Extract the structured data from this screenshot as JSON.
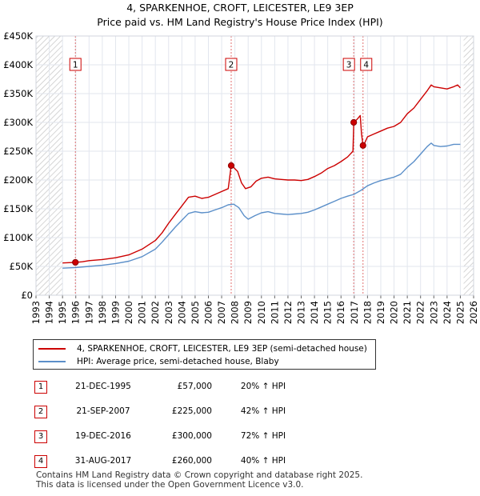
{
  "chart_data": {
    "type": "line",
    "title": "4, SPARKENHOE, CROFT, LEICESTER, LE9 3EP",
    "subtitle": "Price paid vs. HM Land Registry's House Price Index (HPI)",
    "xlim": [
      1993,
      2026
    ],
    "ylim": [
      0,
      450000
    ],
    "x_ticks": [
      "1993",
      "1994",
      "1995",
      "1996",
      "1997",
      "1998",
      "1999",
      "2000",
      "2001",
      "2002",
      "2003",
      "2004",
      "2005",
      "2006",
      "2007",
      "2008",
      "2009",
      "2010",
      "2011",
      "2012",
      "2013",
      "2014",
      "2015",
      "2016",
      "2017",
      "2018",
      "2019",
      "2020",
      "2021",
      "2022",
      "2023",
      "2024",
      "2025",
      "2026"
    ],
    "y_ticks": [
      {
        "value": 0,
        "label": "£0"
      },
      {
        "value": 50000,
        "label": "£50K"
      },
      {
        "value": 100000,
        "label": "£100K"
      },
      {
        "value": 150000,
        "label": "£150K"
      },
      {
        "value": 200000,
        "label": "£200K"
      },
      {
        "value": 250000,
        "label": "£250K"
      },
      {
        "value": 300000,
        "label": "£300K"
      },
      {
        "value": 350000,
        "label": "£350K"
      },
      {
        "value": 400000,
        "label": "£400K"
      },
      {
        "value": 450000,
        "label": "£450K"
      }
    ],
    "hatched_ranges": [
      [
        1993,
        1995
      ],
      [
        2025.25,
        2026
      ]
    ],
    "colors": {
      "property": "#cc0000",
      "hpi": "#5b8fc9",
      "marker_border": "#cc0000",
      "grid": "#e2e6ee",
      "plot_bg": "#ffffff"
    },
    "series": [
      {
        "name": "4, SPARKENHOE, CROFT, LEICESTER, LE9 3EP (semi-detached house)",
        "color": "#cc0000",
        "points": [
          [
            1995.0,
            56000
          ],
          [
            1995.5,
            56500
          ],
          [
            1995.97,
            57000
          ],
          [
            1996.5,
            58000
          ],
          [
            1997.0,
            60000
          ],
          [
            1998.0,
            62000
          ],
          [
            1999.0,
            65000
          ],
          [
            2000.0,
            70000
          ],
          [
            2001.0,
            80000
          ],
          [
            2002.0,
            95000
          ],
          [
            2002.5,
            108000
          ],
          [
            2003.0,
            125000
          ],
          [
            2003.5,
            140000
          ],
          [
            2004.0,
            155000
          ],
          [
            2004.5,
            170000
          ],
          [
            2005.0,
            172000
          ],
          [
            2005.5,
            168000
          ],
          [
            2006.0,
            170000
          ],
          [
            2006.5,
            175000
          ],
          [
            2007.0,
            180000
          ],
          [
            2007.5,
            185000
          ],
          [
            2007.72,
            225000
          ],
          [
            2007.9,
            222000
          ],
          [
            2008.2,
            215000
          ],
          [
            2008.5,
            195000
          ],
          [
            2008.8,
            185000
          ],
          [
            2009.2,
            188000
          ],
          [
            2009.6,
            198000
          ],
          [
            2010.0,
            203000
          ],
          [
            2010.5,
            205000
          ],
          [
            2011.0,
            202000
          ],
          [
            2011.5,
            201000
          ],
          [
            2012.0,
            200000
          ],
          [
            2012.5,
            200000
          ],
          [
            2013.0,
            199000
          ],
          [
            2013.5,
            201000
          ],
          [
            2014.0,
            206000
          ],
          [
            2014.5,
            212000
          ],
          [
            2015.0,
            220000
          ],
          [
            2015.5,
            225000
          ],
          [
            2016.0,
            232000
          ],
          [
            2016.5,
            240000
          ],
          [
            2016.9,
            250000
          ],
          [
            2016.96,
            300000
          ],
          [
            2017.2,
            305000
          ],
          [
            2017.45,
            312000
          ],
          [
            2017.55,
            280000
          ],
          [
            2017.66,
            260000
          ],
          [
            2017.8,
            265000
          ],
          [
            2018.0,
            275000
          ],
          [
            2018.5,
            280000
          ],
          [
            2019.0,
            285000
          ],
          [
            2019.5,
            290000
          ],
          [
            2020.0,
            293000
          ],
          [
            2020.5,
            300000
          ],
          [
            2021.0,
            315000
          ],
          [
            2021.5,
            325000
          ],
          [
            2022.0,
            340000
          ],
          [
            2022.5,
            355000
          ],
          [
            2022.8,
            365000
          ],
          [
            2023.0,
            362000
          ],
          [
            2023.5,
            360000
          ],
          [
            2024.0,
            358000
          ],
          [
            2024.5,
            362000
          ],
          [
            2024.8,
            365000
          ],
          [
            2025.0,
            360000
          ]
        ]
      },
      {
        "name": "HPI: Average price, semi-detached house, Blaby",
        "color": "#5b8fc9",
        "points": [
          [
            1995.0,
            47000
          ],
          [
            1996.0,
            48000
          ],
          [
            1997.0,
            50000
          ],
          [
            1998.0,
            52000
          ],
          [
            1999.0,
            55000
          ],
          [
            2000.0,
            59000
          ],
          [
            2001.0,
            67000
          ],
          [
            2002.0,
            80000
          ],
          [
            2002.5,
            92000
          ],
          [
            2003.0,
            105000
          ],
          [
            2003.5,
            118000
          ],
          [
            2004.0,
            130000
          ],
          [
            2004.5,
            142000
          ],
          [
            2005.0,
            145000
          ],
          [
            2005.5,
            143000
          ],
          [
            2006.0,
            144000
          ],
          [
            2006.5,
            148000
          ],
          [
            2007.0,
            152000
          ],
          [
            2007.5,
            157000
          ],
          [
            2007.9,
            158000
          ],
          [
            2008.3,
            152000
          ],
          [
            2008.7,
            138000
          ],
          [
            2009.0,
            132000
          ],
          [
            2009.5,
            138000
          ],
          [
            2010.0,
            143000
          ],
          [
            2010.5,
            145000
          ],
          [
            2011.0,
            142000
          ],
          [
            2011.5,
            141000
          ],
          [
            2012.0,
            140000
          ],
          [
            2012.5,
            141000
          ],
          [
            2013.0,
            142000
          ],
          [
            2013.5,
            144000
          ],
          [
            2014.0,
            148000
          ],
          [
            2014.5,
            153000
          ],
          [
            2015.0,
            158000
          ],
          [
            2015.5,
            163000
          ],
          [
            2016.0,
            168000
          ],
          [
            2016.5,
            172000
          ],
          [
            2016.96,
            175000
          ],
          [
            2017.5,
            182000
          ],
          [
            2018.0,
            190000
          ],
          [
            2018.5,
            195000
          ],
          [
            2019.0,
            199000
          ],
          [
            2019.5,
            202000
          ],
          [
            2020.0,
            205000
          ],
          [
            2020.5,
            210000
          ],
          [
            2021.0,
            222000
          ],
          [
            2021.5,
            232000
          ],
          [
            2022.0,
            245000
          ],
          [
            2022.5,
            258000
          ],
          [
            2022.8,
            264000
          ],
          [
            2023.0,
            260000
          ],
          [
            2023.5,
            258000
          ],
          [
            2024.0,
            259000
          ],
          [
            2024.5,
            262000
          ],
          [
            2025.0,
            262000
          ]
        ]
      }
    ],
    "sales": [
      {
        "num": "1",
        "x": 1995.97,
        "price": 57000,
        "label_value": 400000
      },
      {
        "num": "2",
        "x": 2007.72,
        "price": 225000,
        "label_value": 400000
      },
      {
        "num": "3",
        "x": 2016.96,
        "price": 300000,
        "label_value": 400000
      },
      {
        "num": "4",
        "x": 2017.66,
        "price": 260000,
        "label_value": 400000
      }
    ]
  },
  "legend": {
    "property_label": "4, SPARKENHOE, CROFT, LEICESTER, LE9 3EP (semi-detached house)",
    "hpi_label": "HPI: Average price, semi-detached house, Blaby"
  },
  "sales_table": [
    {
      "num": "1",
      "date": "21-DEC-1995",
      "price": "£57,000",
      "hpi": "20% ↑ HPI"
    },
    {
      "num": "2",
      "date": "21-SEP-2007",
      "price": "£225,000",
      "hpi": "42% ↑ HPI"
    },
    {
      "num": "3",
      "date": "19-DEC-2016",
      "price": "£300,000",
      "hpi": "72% ↑ HPI"
    },
    {
      "num": "4",
      "date": "31-AUG-2017",
      "price": "£260,000",
      "hpi": "40% ↑ HPI"
    }
  ],
  "footer": {
    "line1": "Contains HM Land Registry data © Crown copyright and database right 2025.",
    "line2": "This data is licensed under the Open Government Licence v3.0."
  }
}
